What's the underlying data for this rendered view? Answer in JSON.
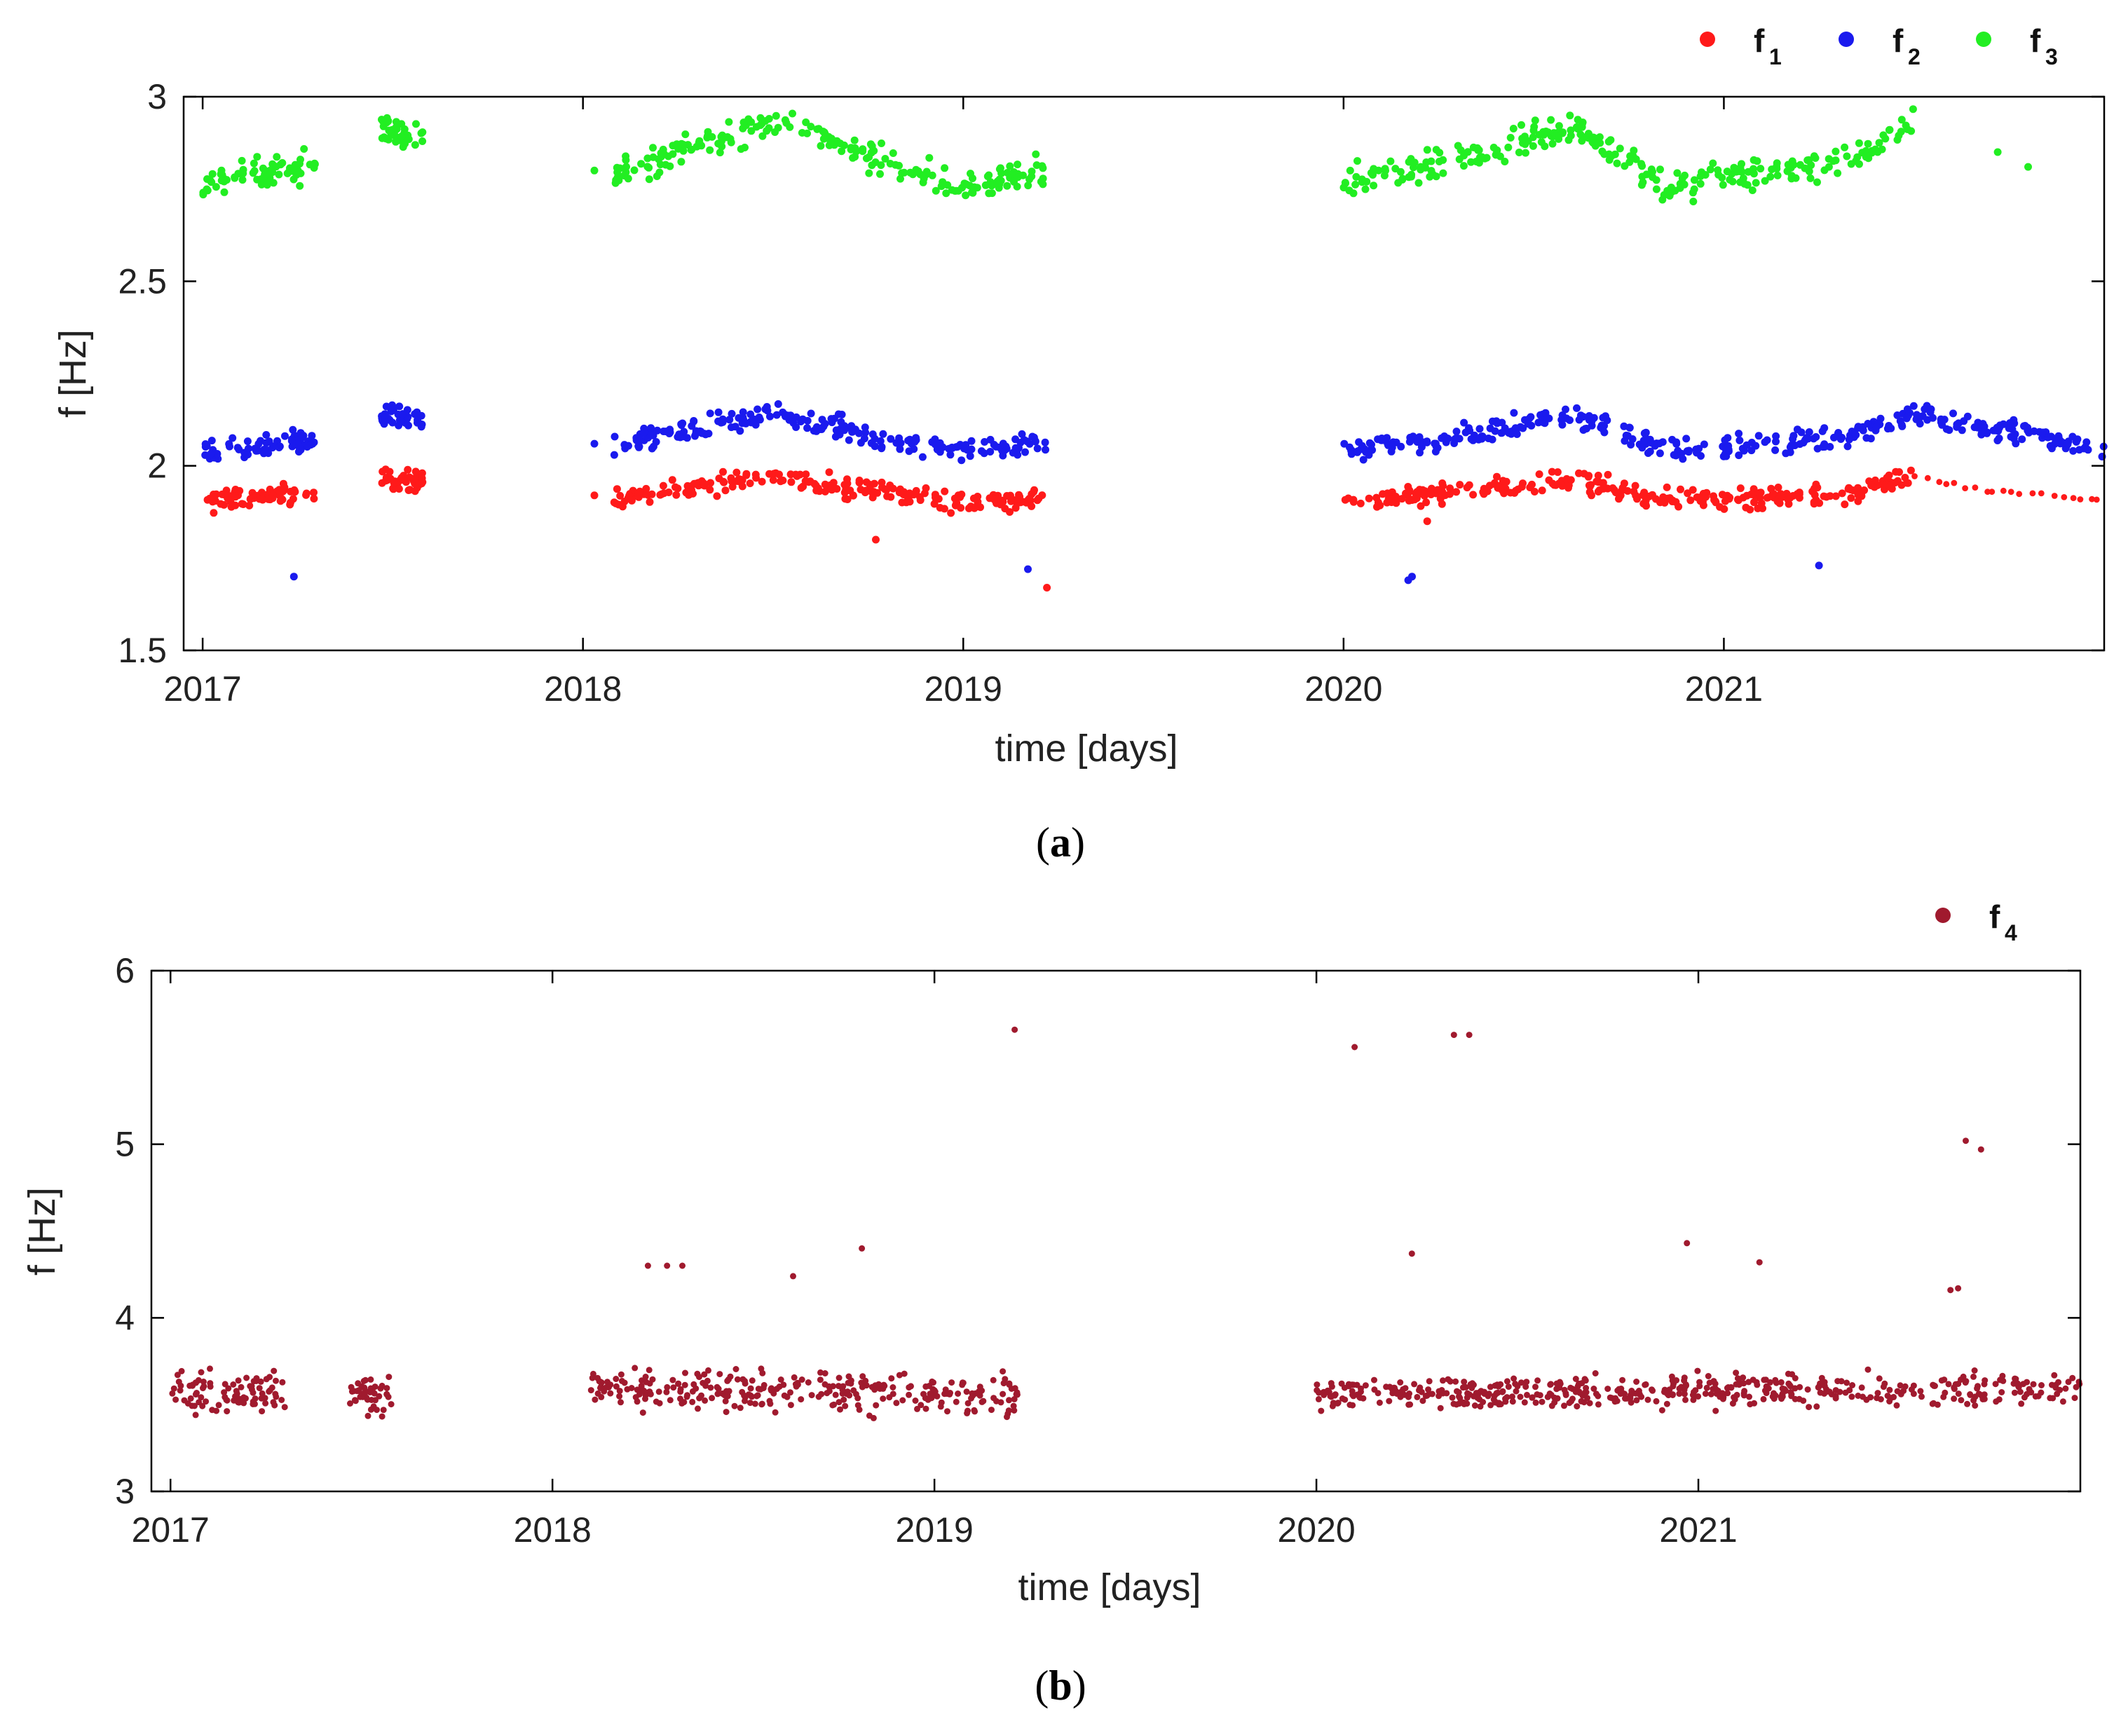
{
  "chart_data": [
    {
      "panel": "(a)",
      "caption_letter": "a",
      "type": "scatter",
      "xlabel": "time [days]",
      "ylabel": "f [Hz]",
      "xlim": [
        2016.95,
        2022.0
      ],
      "ylim": [
        1.5,
        3.0
      ],
      "xticks": [
        "2017",
        "2018",
        "2019",
        "2020",
        "2021"
      ],
      "xtick_values": [
        2017,
        2018,
        2019,
        2020,
        2021
      ],
      "yticks": [
        "1.5",
        "2",
        "2.5",
        "3"
      ],
      "ytick_values": [
        1.5,
        2,
        2.5,
        3
      ],
      "legend_position": "top-right",
      "series": [
        {
          "name": "f",
          "sub": "1",
          "color": "#ff1a1a",
          "profile_x": [
            2017.0,
            2017.3,
            2017.45,
            2018.05,
            2018.5,
            2018.8,
            2019.0,
            2019.22,
            2020.0,
            2020.3,
            2020.6,
            2020.85,
            2021.0,
            2021.3,
            2021.5,
            2021.7,
            2022.0
          ],
          "profile_y": [
            1.9,
            1.93,
            1.97,
            1.91,
            1.97,
            1.93,
            1.9,
            1.91,
            1.9,
            1.93,
            1.96,
            1.91,
            1.91,
            1.92,
            1.97,
            1.93,
            1.91
          ],
          "segments": [
            [
              2017.0,
              2017.3,
              0.03
            ],
            [
              2017.47,
              2017.58,
              0.03
            ],
            [
              2018.08,
              2019.22,
              0.03
            ],
            [
              2020.0,
              2021.5,
              0.03
            ]
          ],
          "sparse_segments": [
            [
              2021.5,
              2022.0,
              0.01
            ]
          ],
          "outliers": [
            [
              2018.03,
              1.92
            ],
            [
              2018.77,
              1.8
            ],
            [
              2019.22,
              1.67
            ],
            [
              2020.22,
              1.85
            ]
          ]
        },
        {
          "name": "f",
          "sub": "2",
          "color": "#1a1aee",
          "profile_x": [
            2017.0,
            2017.3,
            2017.45,
            2018.05,
            2018.5,
            2018.8,
            2019.0,
            2019.22,
            2020.0,
            2020.3,
            2020.6,
            2020.85,
            2021.0,
            2021.3,
            2021.5,
            2021.7,
            2022.0
          ],
          "profile_y": [
            2.03,
            2.07,
            2.14,
            2.05,
            2.14,
            2.07,
            2.04,
            2.06,
            2.04,
            2.08,
            2.14,
            2.04,
            2.05,
            2.07,
            2.14,
            2.11,
            2.04
          ],
          "segments": [
            [
              2017.0,
              2017.3,
              0.035
            ],
            [
              2017.47,
              2017.58,
              0.035
            ],
            [
              2018.08,
              2019.22,
              0.035
            ],
            [
              2020.0,
              2022.0,
              0.035
            ]
          ],
          "sparse_segments": [],
          "outliers": [
            [
              2017.24,
              1.7
            ],
            [
              2018.03,
              2.06
            ],
            [
              2019.17,
              1.72
            ],
            [
              2020.17,
              1.69
            ],
            [
              2020.18,
              1.7
            ],
            [
              2021.25,
              1.73
            ]
          ]
        },
        {
          "name": "f",
          "sub": "3",
          "color": "#22ee22",
          "profile_x": [
            2017.0,
            2017.3,
            2017.45,
            2018.05,
            2018.5,
            2018.8,
            2019.0,
            2019.22,
            2020.0,
            2020.3,
            2020.6,
            2020.85,
            2021.0,
            2021.3,
            2021.5,
            2021.7,
            2022.0
          ],
          "profile_y": [
            2.76,
            2.82,
            2.92,
            2.78,
            2.93,
            2.82,
            2.76,
            2.8,
            2.77,
            2.83,
            2.92,
            2.76,
            2.78,
            2.82,
            2.93,
            2.85,
            2.8
          ],
          "segments": [
            [
              2017.0,
              2017.3,
              0.045
            ],
            [
              2017.47,
              2017.58,
              0.045
            ],
            [
              2018.08,
              2019.22,
              0.045
            ],
            [
              2020.0,
              2021.5,
              0.045
            ]
          ],
          "sparse_segments": [],
          "outliers": [
            [
              2018.03,
              2.8
            ],
            [
              2021.72,
              2.85
            ],
            [
              2021.8,
              2.81
            ]
          ]
        }
      ]
    },
    {
      "panel": "(b)",
      "caption_letter": "b",
      "type": "scatter",
      "xlabel": "time [days]",
      "ylabel": "f [Hz]",
      "xlim": [
        2016.95,
        2022.0
      ],
      "ylim": [
        3,
        6
      ],
      "xticks": [
        "2017",
        "2018",
        "2019",
        "2020",
        "2021"
      ],
      "xtick_values": [
        2017,
        2018,
        2019,
        2020,
        2021
      ],
      "yticks": [
        "3",
        "4",
        "5",
        "6"
      ],
      "ytick_values": [
        3,
        4,
        5,
        6
      ],
      "legend_position": "top-right",
      "series": [
        {
          "name": "f",
          "sub": "4",
          "color": "#a01a2e",
          "profile_x": [
            2017.0,
            2017.3,
            2017.45,
            2018.1,
            2018.5,
            2019.0,
            2019.22,
            2020.0,
            2021.0,
            2022.0
          ],
          "profile_y": [
            3.57,
            3.56,
            3.54,
            3.6,
            3.58,
            3.57,
            3.55,
            3.55,
            3.58,
            3.59
          ],
          "segments": [
            [
              2017.0,
              2017.3,
              0.12
            ],
            [
              2017.47,
              2017.58,
              0.14
            ],
            [
              2018.1,
              2019.22,
              0.13
            ],
            [
              2020.0,
              2022.0,
              0.1
            ]
          ],
          "sparse_segments": [],
          "outliers": [
            [
              2018.25,
              4.3
            ],
            [
              2018.3,
              4.3
            ],
            [
              2018.34,
              4.3
            ],
            [
              2018.63,
              4.24
            ],
            [
              2018.81,
              4.4
            ],
            [
              2019.21,
              5.66
            ],
            [
              2020.1,
              5.56
            ],
            [
              2020.25,
              4.37
            ],
            [
              2020.36,
              5.63
            ],
            [
              2020.4,
              5.63
            ],
            [
              2020.97,
              4.43
            ],
            [
              2021.16,
              4.32
            ],
            [
              2021.66,
              4.16
            ],
            [
              2021.68,
              4.17
            ],
            [
              2021.7,
              5.02
            ],
            [
              2021.74,
              4.97
            ]
          ]
        }
      ]
    }
  ]
}
